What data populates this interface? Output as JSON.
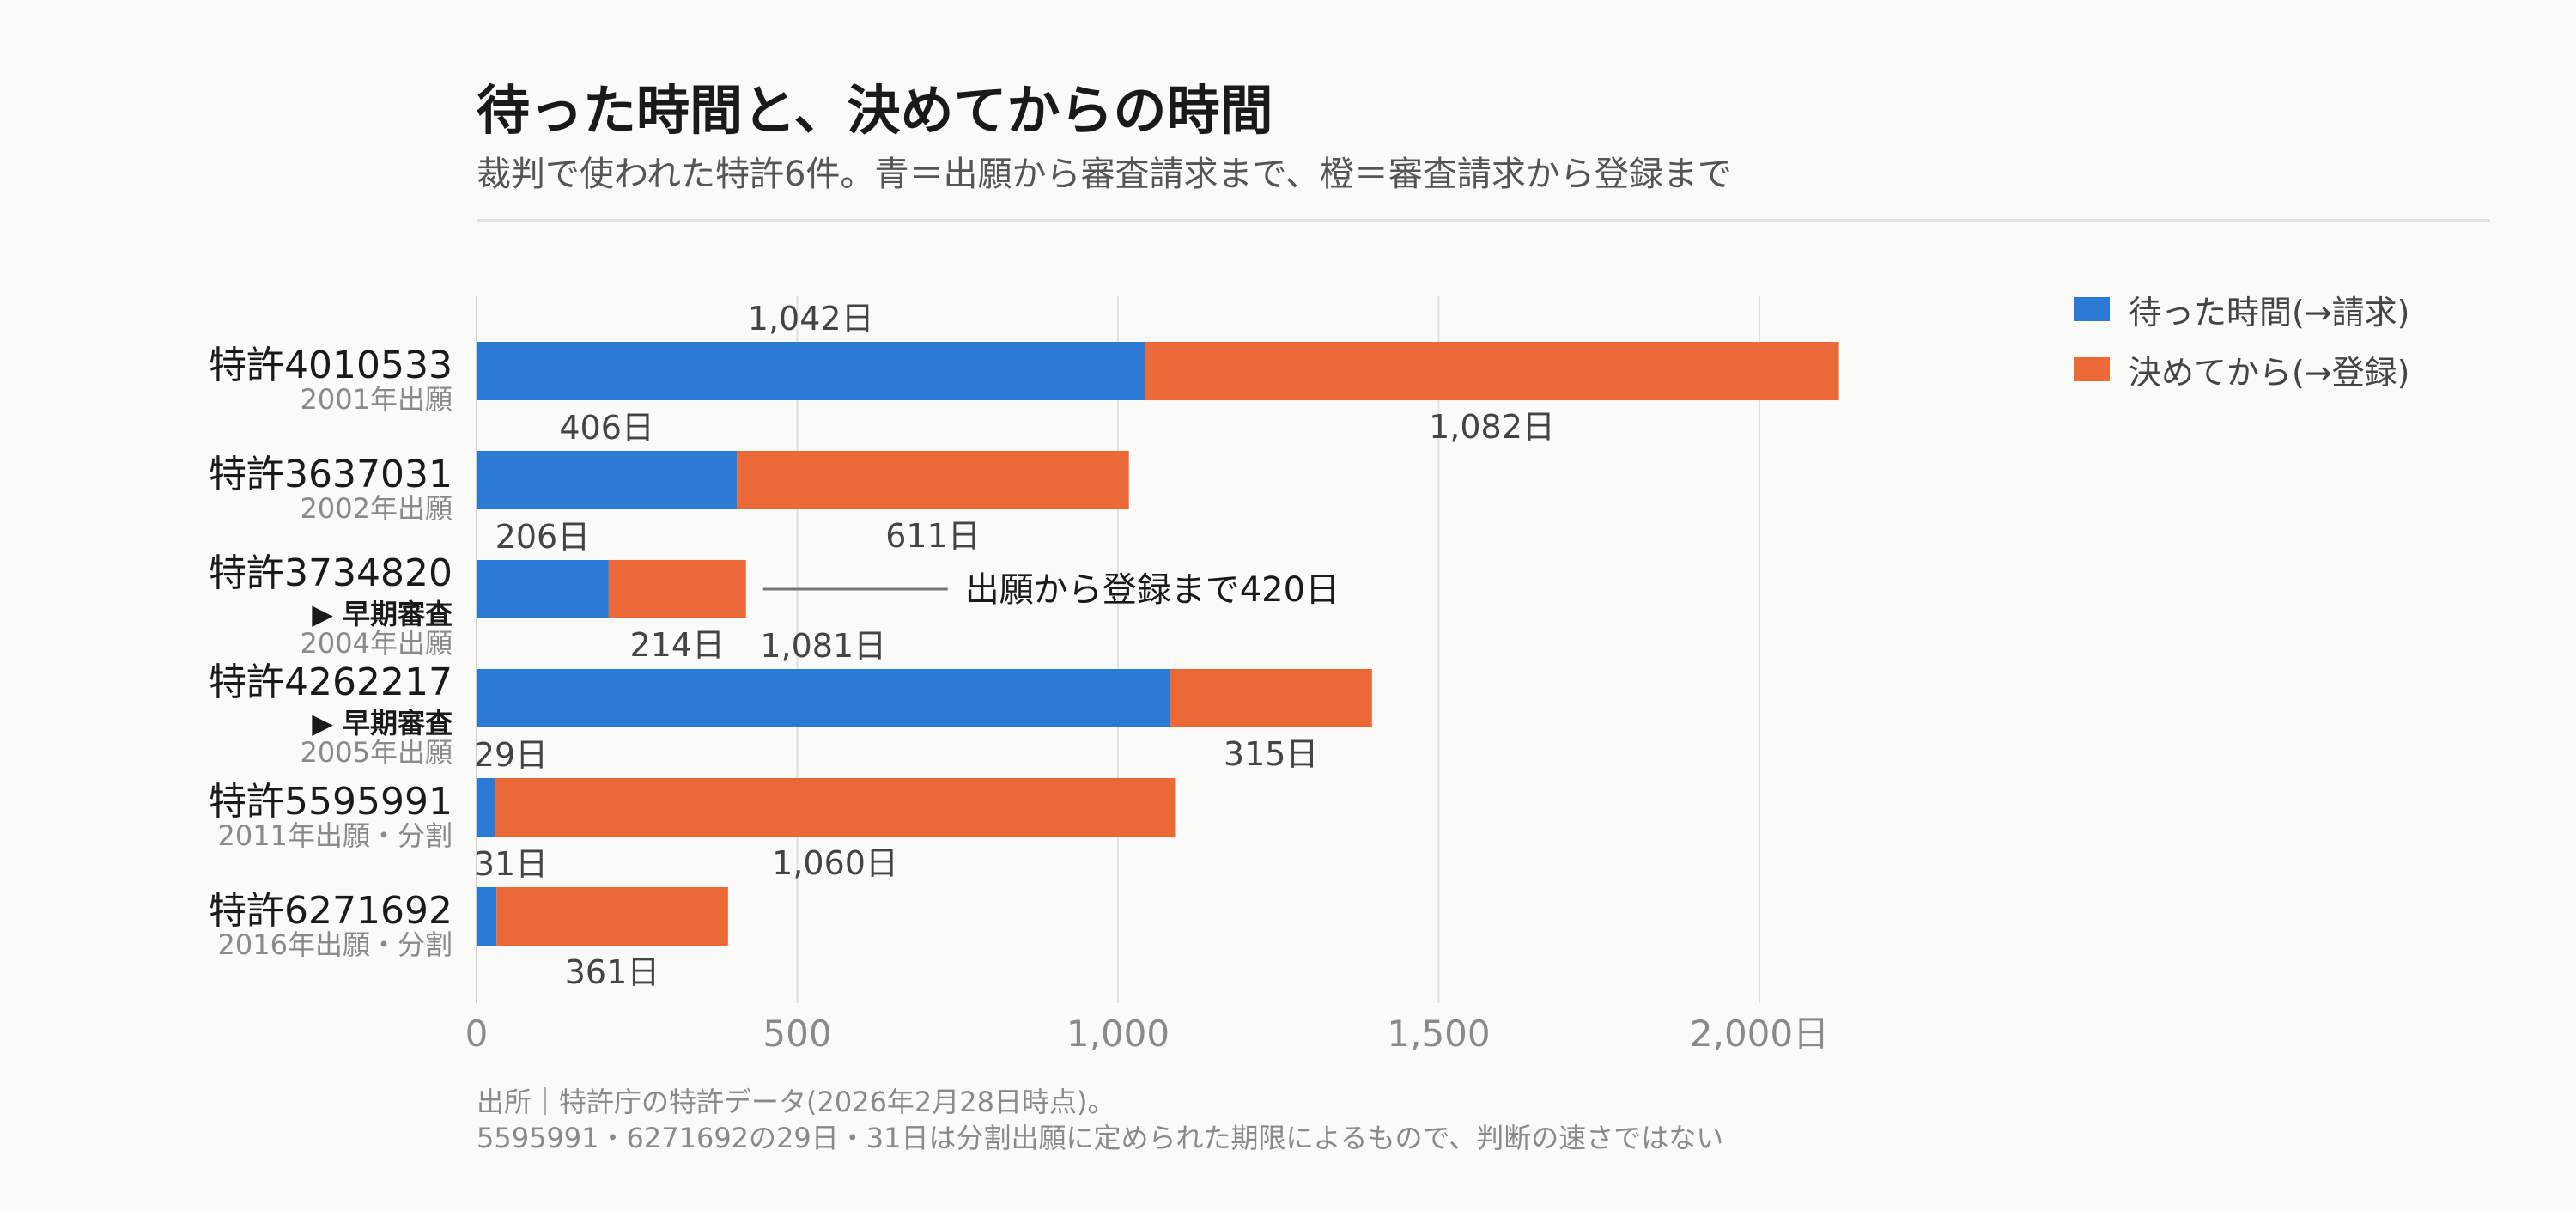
{
  "title": "待った時間と、決めてからの時間",
  "subtitle": "裁判で使われた特許6件。青＝出願から審査請求まで、橙＝審査請求から登録まで",
  "source_lines": [
    "出所｜特許庁の特許データ(2026年2月28日時点)。",
    "5595991・6271692の29日・31日は分割出願に定められた期限によるもので、判断の速さではない"
  ],
  "colors": {
    "wait": "#2a7ad6",
    "decide": "#eb6837"
  },
  "legend": [
    {
      "label": "待った時間(→請求)",
      "color": "#2a7ad6"
    },
    {
      "label": "決めてから(→登録)",
      "color": "#eb6837"
    }
  ],
  "chart_data": {
    "type": "bar",
    "orientation": "horizontal",
    "stacked": true,
    "categories": [
      "特許4010533",
      "特許3637031",
      "特許3734820",
      "特許4262217",
      "特許5595991",
      "特許6271692"
    ],
    "sublabels": [
      "2001年出願",
      "2002年出願",
      "2004年出願",
      "2005年出願",
      "2011年出願・分割",
      "2016年出願・分割"
    ],
    "badges": [
      "",
      "",
      "▶ 早期審査",
      "▶ 早期審査",
      "",
      ""
    ],
    "series": [
      {
        "name": "待った時間(→請求)",
        "values": [
          1042,
          406,
          206,
          1081,
          29,
          31
        ],
        "labels": [
          "1,042日",
          "406日",
          "206日",
          "1,081日",
          "29日",
          "31日"
        ]
      },
      {
        "name": "決めてから(→登録)",
        "values": [
          1082,
          611,
          214,
          315,
          1060,
          361
        ],
        "labels": [
          "1,082日",
          "611日",
          "214日",
          "315日",
          "1,060日",
          "361日"
        ]
      }
    ],
    "xlim": [
      0,
      2100
    ],
    "xticks": [
      0,
      500,
      1000,
      1500,
      2000
    ],
    "xtick_labels": [
      "0",
      "500",
      "1,000",
      "1,500",
      "2,000日"
    ],
    "grid": true,
    "legend_position": "top-right",
    "annotation": {
      "bar_index": 2,
      "text": "出願から登録まで420日"
    }
  }
}
